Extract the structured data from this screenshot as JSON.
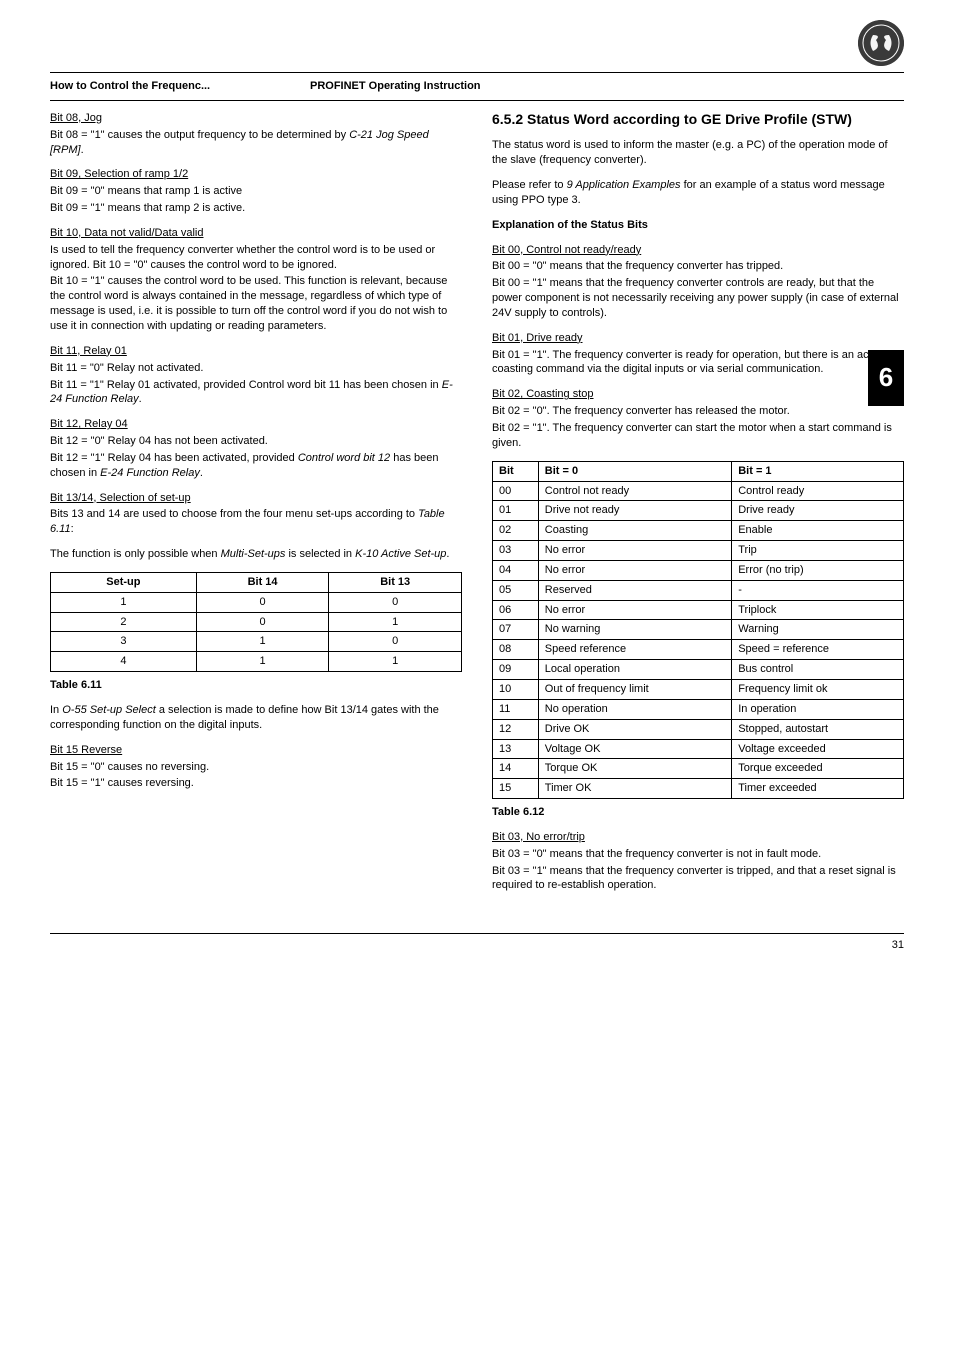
{
  "header": {
    "left": "How to Control the Frequenc...",
    "right": "PROFINET Operating Instruction"
  },
  "side_tab": "6",
  "left_col": {
    "bit08_head": "Bit 08, Jog",
    "bit08_p": "Bit 08 = \"1\" causes the output frequency to be determined by ",
    "bit08_param": "C-21 Jog Speed [RPM]",
    "bit08_end": ".",
    "bit09_head": "Bit 09, Selection of ramp 1/2",
    "bit09_l1": "Bit 09 = \"0\" means that ramp 1 is active",
    "bit09_l2": "Bit 09 = \"1\" means that ramp 2 is active.",
    "bit10_head": "Bit 10, Data not valid/Data valid",
    "bit10_p1": "Is used to tell the frequency converter whether the control word is to be used or ignored. Bit 10 = \"0\" causes the control word to be ignored.",
    "bit10_p2": "Bit 10 = \"1\" causes the control word to be used. This function is relevant, because the control word is always contained in the message, regardless of which type of message is used, i.e. it is possible to turn off the control word if you do not wish to use it in connection with updating or reading parameters.",
    "bit11_head": "Bit 11, Relay 01",
    "bit11_l1": "Bit 11 = \"0\" Relay not activated.",
    "bit11_l2a": "Bit 11 = \"1\" Relay 01 activated, provided Control word bit 11 has been chosen in ",
    "bit11_l2b": "E-24 Function Relay",
    "bit11_l2c": ".",
    "bit12_head": "Bit 12, Relay 04",
    "bit12_l1": "Bit 12 = \"0\" Relay 04 has not been activated.",
    "bit12_l2a": "Bit 12 = \"1\" Relay 04 has been activated, provided ",
    "bit12_l2b": "Control word bit 12",
    "bit12_l2c": " has been chosen in ",
    "bit12_l2d": "E-24 Function Relay",
    "bit12_l2e": ".",
    "bit1314_head": "Bit 13/14, Selection of set-up",
    "bit1314_p1a": "Bits 13 and 14 are used to choose from the four menu set-ups according to ",
    "bit1314_p1b": "Table 6.11",
    "bit1314_p1c": ":",
    "bit1314_p2a": "The function is only possible when ",
    "bit1314_p2b": "Multi-Set-ups",
    "bit1314_p2c": " is selected in ",
    "bit1314_p2d": "K-10 Active Set-up",
    "bit1314_p2e": ".",
    "setup_table": {
      "columns": [
        "Set-up",
        "Bit 14",
        "Bit 13"
      ],
      "rows": [
        [
          "1",
          "0",
          "0"
        ],
        [
          "2",
          "0",
          "1"
        ],
        [
          "3",
          "1",
          "0"
        ],
        [
          "4",
          "1",
          "1"
        ]
      ]
    },
    "setup_caption": "Table 6.11",
    "after_setup_a": "In ",
    "after_setup_b": "O-55 Set-up Select",
    "after_setup_c": " a selection is made to define how Bit 13/14 gates with the corresponding function on the digital inputs.",
    "bit15_head": "Bit 15 Reverse",
    "bit15_l1": "Bit 15 = \"0\" causes no reversing.",
    "bit15_l2": "Bit 15 = \"1\" causes reversing."
  },
  "right_col": {
    "section_num": "6.5.2",
    "section_title": "Status Word according to GE Drive Profile (STW)",
    "p1": "The status word is used to inform the master (e.g. a PC) of the operation mode of the slave (frequency converter).",
    "p2a": "Please refer to ",
    "p2b": "9 Application Examples",
    "p2c": " for an example of a status word message using PPO type 3.",
    "exp_head": "Explanation of the Status Bits",
    "bit00_head": "Bit 00, Control not ready/ready",
    "bit00_l1": "Bit 00 = \"0\" means that the frequency converter has tripped.",
    "bit00_l2": "Bit 00 = \"1\" means that the frequency converter controls are ready, but that the power component is not necessarily receiving any power supply (in case of external 24V supply to controls).",
    "bit01_head": "Bit 01, Drive ready",
    "bit01_p": "Bit 01 = \"1\". The frequency converter is ready for operation, but there is an active coasting command via the digital inputs or via serial communication.",
    "bit02_head": "Bit 02, Coasting stop",
    "bit02_l1": "Bit 02 = \"0\". The frequency converter has released the motor.",
    "bit02_l2": "Bit 02 = \"1\". The frequency converter can start the motor when a start command is given.",
    "status_table": {
      "columns": [
        "Bit",
        "Bit = 0",
        "Bit = 1"
      ],
      "rows": [
        [
          "00",
          "Control not ready",
          "Control ready"
        ],
        [
          "01",
          "Drive not ready",
          "Drive ready"
        ],
        [
          "02",
          "Coasting",
          "Enable"
        ],
        [
          "03",
          "No error",
          "Trip"
        ],
        [
          "04",
          "No error",
          "Error (no trip)"
        ],
        [
          "05",
          "Reserved",
          "-"
        ],
        [
          "06",
          "No error",
          "Triplock"
        ],
        [
          "07",
          "No warning",
          "Warning"
        ],
        [
          "08",
          "Speed reference",
          "Speed = reference"
        ],
        [
          "09",
          "Local operation",
          "Bus control"
        ],
        [
          "10",
          "Out of frequency limit",
          "Frequency limit ok"
        ],
        [
          "11",
          "No operation",
          "In operation"
        ],
        [
          "12",
          "Drive OK",
          "Stopped, autostart"
        ],
        [
          "13",
          "Voltage OK",
          "Voltage exceeded"
        ],
        [
          "14",
          "Torque OK",
          "Torque exceeded"
        ],
        [
          "15",
          "Timer OK",
          "Timer exceeded"
        ]
      ]
    },
    "status_caption": "Table 6.12",
    "bit03_head": "Bit 03, No error/trip",
    "bit03_l1": "Bit 03 = \"0\" means that the frequency converter is not in fault mode.",
    "bit03_l2": "Bit 03 = \"1\" means that the frequency converter is tripped, and that a reset signal is required to re-establish operation."
  },
  "footer": {
    "page": "31"
  }
}
